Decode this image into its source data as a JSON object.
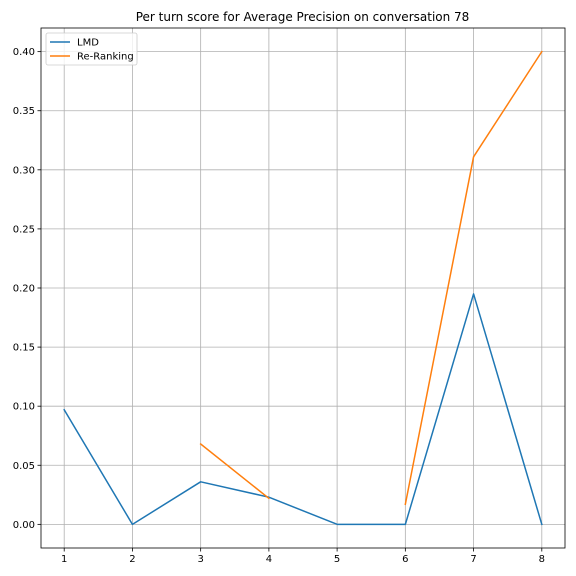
{
  "chart_data": {
    "type": "line",
    "title": "Per turn score for Average Precision on conversation 78",
    "xlabel": "",
    "ylabel": "",
    "x": [
      1,
      2,
      3,
      4,
      5,
      6,
      7,
      8
    ],
    "xlim": [
      0.66,
      8.34
    ],
    "ylim": [
      -0.02,
      0.42
    ],
    "xticks": [
      1,
      2,
      3,
      4,
      5,
      6,
      7,
      8
    ],
    "yticks": [
      0.0,
      0.05,
      0.1,
      0.15,
      0.2,
      0.25,
      0.3,
      0.35,
      0.4
    ],
    "ytick_labels": [
      "0.00",
      "0.05",
      "0.10",
      "0.15",
      "0.20",
      "0.25",
      "0.30",
      "0.35",
      "0.40"
    ],
    "grid": true,
    "legend_position": "top-left",
    "series": [
      {
        "name": "LMD",
        "color": "#1f77b4",
        "values": [
          0.097,
          0.0,
          0.036,
          0.023,
          0.0,
          0.0,
          0.195,
          0.0
        ]
      },
      {
        "name": "Re-Ranking",
        "color": "#ff7f0e",
        "values": [
          null,
          null,
          0.068,
          0.022,
          null,
          0.017,
          0.311,
          0.4
        ]
      }
    ]
  }
}
